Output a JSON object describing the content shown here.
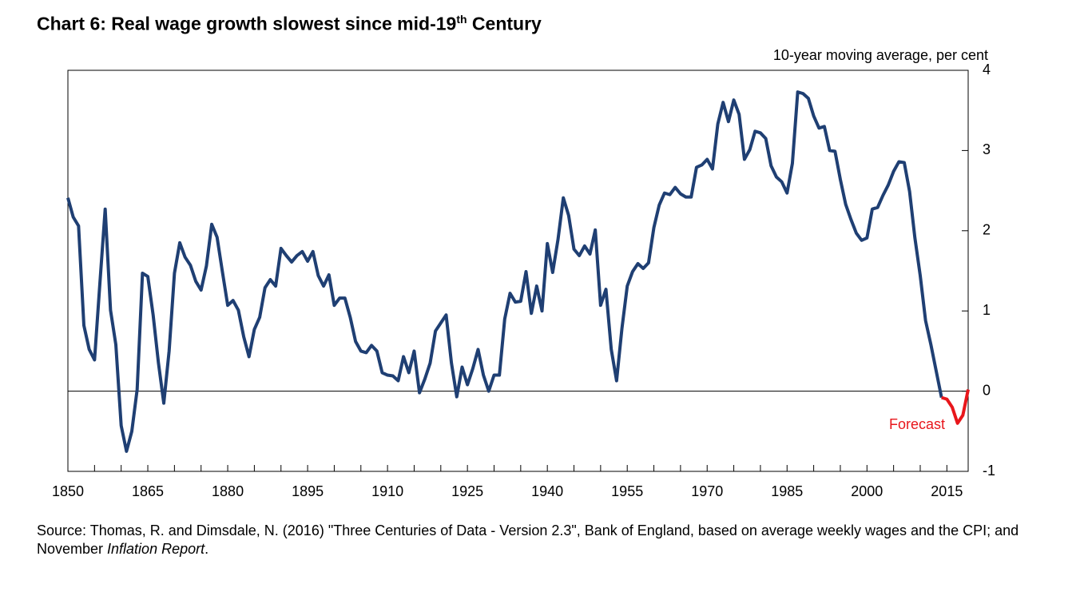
{
  "chart_data": {
    "type": "line",
    "title_parts": [
      "Chart 6: Real wage growth slowest since mid-19",
      "th",
      " Century"
    ],
    "y_axis_label": "10-year moving average, per cent",
    "annotation": "Forecast",
    "source_parts": [
      "Source: Thomas, R. and Dimsdale, N. (2016) \"Three Centuries of Data - Version 2.3\", Bank of England, based on average weekly wages and the CPI; and November ",
      "Inflation Report",
      "."
    ],
    "xlim": [
      1850,
      2019
    ],
    "xticks": [
      1850,
      1865,
      1880,
      1895,
      1910,
      1925,
      1940,
      1955,
      1970,
      1985,
      2000,
      2015
    ],
    "xminorticks": [
      1855,
      1860,
      1870,
      1875,
      1885,
      1890,
      1900,
      1905,
      1915,
      1920,
      1930,
      1935,
      1945,
      1950,
      1960,
      1965,
      1975,
      1980,
      1990,
      1995,
      2005,
      2010
    ],
    "ylim": [
      -1,
      4
    ],
    "yticks": [
      -1,
      0,
      1,
      2,
      3,
      4
    ],
    "series": [
      {
        "name": "Real wage growth",
        "color": "#1f3f73",
        "x": [
          1850,
          1851,
          1852,
          1853,
          1854,
          1855,
          1856,
          1857,
          1858,
          1859,
          1860,
          1861,
          1862,
          1863,
          1864,
          1865,
          1866,
          1867,
          1868,
          1869,
          1870,
          1871,
          1872,
          1873,
          1874,
          1875,
          1876,
          1877,
          1878,
          1879,
          1880,
          1881,
          1882,
          1883,
          1884,
          1885,
          1886,
          1887,
          1888,
          1889,
          1890,
          1891,
          1892,
          1893,
          1894,
          1895,
          1896,
          1897,
          1898,
          1899,
          1900,
          1901,
          1902,
          1903,
          1904,
          1905,
          1906,
          1907,
          1908,
          1909,
          1910,
          1911,
          1912,
          1913,
          1914,
          1915,
          1916,
          1917,
          1918,
          1919,
          1920,
          1921,
          1922,
          1923,
          1924,
          1925,
          1926,
          1927,
          1928,
          1929,
          1930,
          1931,
          1932,
          1933,
          1934,
          1935,
          1936,
          1937,
          1938,
          1939,
          1940,
          1941,
          1942,
          1943,
          1944,
          1945,
          1946,
          1947,
          1948,
          1949,
          1950,
          1951,
          1952,
          1953,
          1954,
          1955,
          1956,
          1957,
          1958,
          1959,
          1960,
          1961,
          1962,
          1963,
          1964,
          1965,
          1966,
          1967,
          1968,
          1969,
          1970,
          1971,
          1972,
          1973,
          1974,
          1975,
          1976,
          1977,
          1978,
          1979,
          1980,
          1981,
          1982,
          1983,
          1984,
          1985,
          1986,
          1987,
          1988,
          1989,
          1990,
          1991,
          1992,
          1993,
          1994,
          1995,
          1996,
          1997,
          1998,
          1999,
          2000,
          2001,
          2002,
          2003,
          2004,
          2005,
          2006,
          2007,
          2008,
          2009,
          2010,
          2011,
          2012,
          2013,
          2014
        ],
        "values": [
          2.41,
          2.17,
          2.06,
          0.82,
          0.52,
          0.39,
          1.34,
          2.27,
          1.01,
          0.58,
          -0.43,
          -0.75,
          -0.5,
          0.02,
          1.47,
          1.43,
          0.95,
          0.35,
          -0.15,
          0.5,
          1.47,
          1.85,
          1.67,
          1.57,
          1.37,
          1.26,
          1.56,
          2.08,
          1.92,
          1.49,
          1.07,
          1.13,
          1.01,
          0.68,
          0.43,
          0.77,
          0.92,
          1.29,
          1.39,
          1.31,
          1.78,
          1.69,
          1.61,
          1.69,
          1.74,
          1.62,
          1.74,
          1.44,
          1.31,
          1.45,
          1.07,
          1.16,
          1.16,
          0.92,
          0.62,
          0.5,
          0.48,
          0.57,
          0.5,
          0.23,
          0.2,
          0.19,
          0.13,
          0.43,
          0.23,
          0.5,
          -0.02,
          0.15,
          0.35,
          0.75,
          0.85,
          0.95,
          0.35,
          -0.07,
          0.3,
          0.08,
          0.28,
          0.52,
          0.2,
          0.0,
          0.2,
          0.2,
          0.9,
          1.22,
          1.11,
          1.12,
          1.49,
          0.97,
          1.31,
          1.0,
          1.84,
          1.48,
          1.89,
          2.41,
          2.19,
          1.77,
          1.69,
          1.81,
          1.71,
          2.01,
          1.07,
          1.27,
          0.52,
          0.13,
          0.78,
          1.31,
          1.49,
          1.59,
          1.53,
          1.6,
          2.04,
          2.32,
          2.47,
          2.45,
          2.54,
          2.46,
          2.42,
          2.42,
          2.79,
          2.82,
          2.89,
          2.77,
          3.33,
          3.6,
          3.36,
          3.63,
          3.45,
          2.89,
          3.01,
          3.24,
          3.22,
          3.15,
          2.81,
          2.67,
          2.61,
          2.47,
          2.84,
          3.73,
          3.71,
          3.65,
          3.43,
          3.28,
          3.3,
          3.0,
          2.99,
          2.64,
          2.33,
          2.14,
          1.97,
          1.88,
          1.91,
          2.27,
          2.29,
          2.44,
          2.57,
          2.74,
          2.86,
          2.85,
          2.49,
          1.91,
          1.44,
          0.88,
          0.58,
          0.25,
          -0.08
        ]
      },
      {
        "name": "Forecast",
        "color": "#e8161b",
        "x": [
          2014,
          2015,
          2016,
          2017,
          2018,
          2019
        ],
        "values": [
          -0.08,
          -0.1,
          -0.2,
          -0.4,
          -0.3,
          0.02
        ]
      }
    ]
  }
}
